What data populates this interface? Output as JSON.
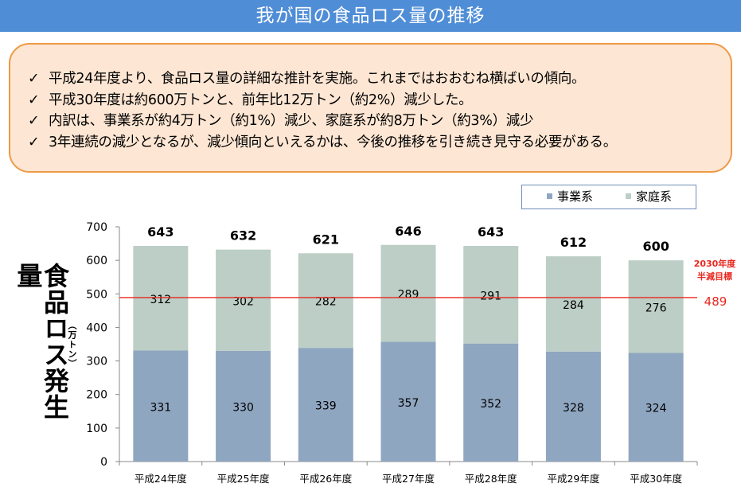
{
  "header": {
    "title": "我が国の食品ロス量の推移"
  },
  "summary": {
    "check_symbol": "✓",
    "bullets": [
      "平成24年度より、食品ロス量の詳細な推計を実施。これまではおおむね横ばいの傾向。",
      "平成30年度は約600万トンと、前年比12万トン（約2%）減少した。",
      "内訳は、事業系が約4万トン（約1%）減少、家庭系が約8万トン（約3%）減少",
      "3年連続の減少となるが、減少傾向といえるかは、今後の推移を引き続き見守る必要がある。"
    ]
  },
  "chart_data": {
    "type": "bar",
    "stacked": true,
    "ylabel": "食品ロス発生量",
    "yunit": "（万トン）",
    "ylim": [
      0,
      700
    ],
    "yticks": [
      0,
      100,
      200,
      300,
      400,
      500,
      600,
      700
    ],
    "grid": false,
    "legend_position": "top-right",
    "categories": [
      "平成24年度",
      "平成25年度",
      "平成26年度",
      "平成27年度",
      "平成28年度",
      "平成29年度",
      "平成30年度"
    ],
    "series": [
      {
        "name": "事業系",
        "color": "#8fa6c1",
        "values": [
          331,
          330,
          339,
          357,
          352,
          328,
          324
        ]
      },
      {
        "name": "家庭系",
        "color": "#bccec6",
        "values": [
          312,
          302,
          282,
          289,
          291,
          284,
          276
        ]
      }
    ],
    "totals": [
      643,
      632,
      621,
      646,
      643,
      612,
      600
    ],
    "target_line": {
      "value": 489,
      "value_label": "489",
      "label_line1": "2030年度",
      "label_line2": "半減目標",
      "color": "#e8281e"
    }
  }
}
